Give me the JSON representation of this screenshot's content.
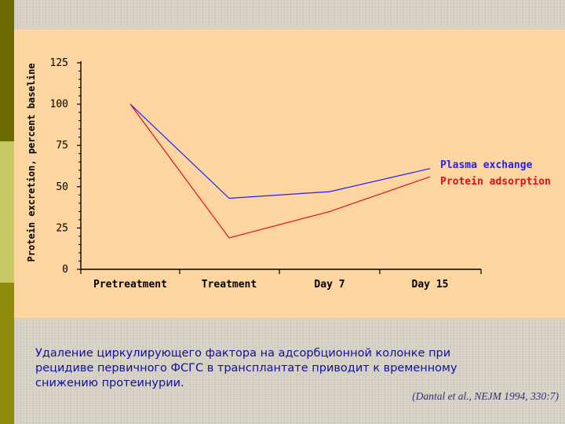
{
  "chart_data": {
    "type": "line",
    "categories": [
      "Pretreatment",
      "Treatment",
      "Day 7",
      "Day 15"
    ],
    "series": [
      {
        "name": "Plasma exchange",
        "values": [
          100,
          43,
          47,
          61
        ],
        "color": "#2020ff"
      },
      {
        "name": "Protein adsorption",
        "values": [
          100,
          19,
          35,
          56
        ],
        "color": "#e01010"
      }
    ],
    "ylabel": "Protein excretion, percent baseline",
    "xlabel": "",
    "yticks": [
      0,
      25,
      50,
      75,
      100,
      125
    ],
    "ylim": [
      0,
      125
    ],
    "legend_position": "right",
    "grid": false
  },
  "caption": {
    "line1": "Удаление циркулирующего фактора на адсорбционной колонке при",
    "line2": "рецидиве первичного ФСГС  в трансплантате приводит к временному",
    "line3": "снижению протеинурии."
  },
  "citation": "(Dantal et al., NEJM 1994, 330:7)",
  "colors": {
    "panel": "#fdd5a0",
    "caption_text": "#10109a"
  }
}
